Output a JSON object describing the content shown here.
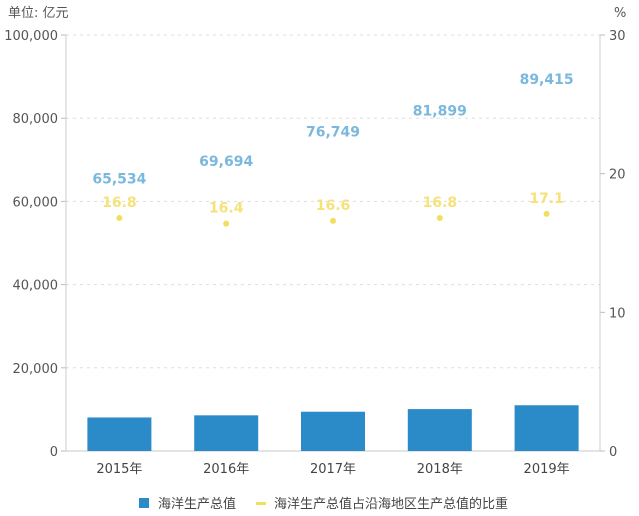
{
  "chart_data": {
    "type": "bar",
    "left_unit": "单位: 亿元",
    "right_unit": "%",
    "categories": [
      "2015年",
      "2016年",
      "2017年",
      "2018年",
      "2019年"
    ],
    "series": [
      {
        "name": "海洋生产总值",
        "kind": "bar",
        "axis": "left",
        "values": [
          65534,
          69694,
          76749,
          81899,
          89415
        ],
        "labels": [
          "65,534",
          "69,694",
          "76,749",
          "81,899",
          "89,415"
        ],
        "color": "#2a8bc8",
        "label_color": "#7ab8dd"
      },
      {
        "name": "海洋生产总值占沿海地区生产总值的比重",
        "kind": "point",
        "axis": "right",
        "values": [
          16.8,
          16.4,
          16.6,
          16.8,
          17.1
        ],
        "labels": [
          "16.8",
          "16.4",
          "16.6",
          "16.8",
          "17.1"
        ],
        "color": "#f2df5c",
        "label_color": "#f5e27a"
      }
    ],
    "left_axis": {
      "min": 0,
      "max": 100000,
      "ticks": [
        0,
        20000,
        40000,
        60000,
        80000,
        100000
      ],
      "tick_labels": [
        "0",
        "20,000",
        "40,000",
        "60,000",
        "80,000",
        "100,000"
      ]
    },
    "right_axis": {
      "min": 0,
      "max": 30,
      "ticks": [
        0,
        10,
        20,
        30
      ],
      "tick_labels": [
        "0",
        "10",
        "20",
        "30"
      ]
    },
    "grid": true,
    "legend_position": "bottom"
  }
}
